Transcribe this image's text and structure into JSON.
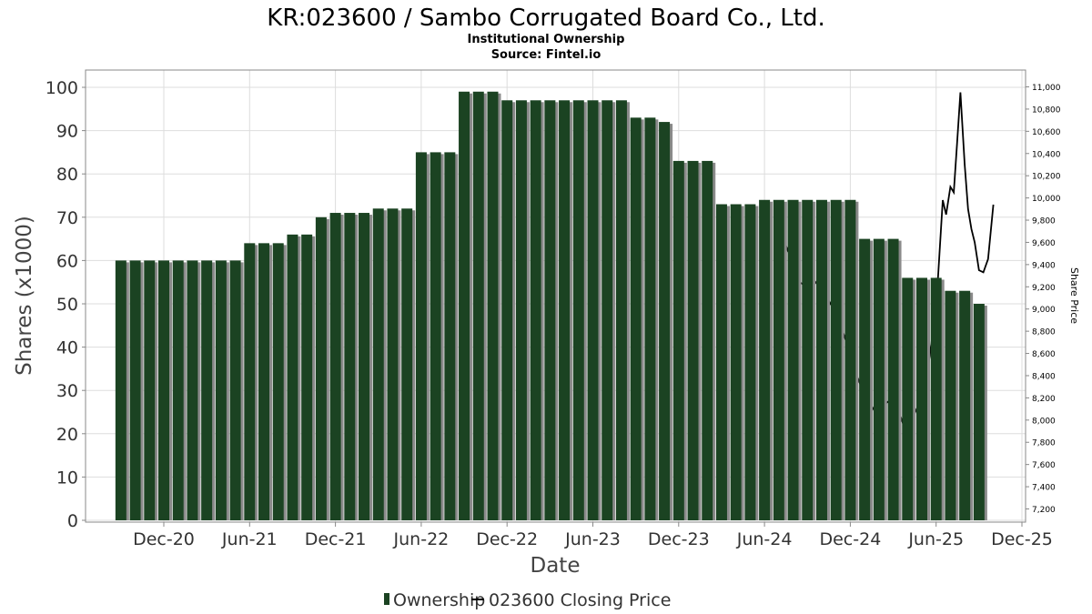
{
  "title": "KR:023600 / Sambo Corrugated Board Co., Ltd.",
  "subtitle": "Institutional Ownership",
  "source": "Source: Fintel.io",
  "colors": {
    "bar": "#1b4322",
    "bar_shadow": "#8a8a8a",
    "line": "#000000",
    "grid": "#dddddd",
    "axis": "#888888"
  },
  "chart_data": {
    "type": "bar",
    "xlabel": "Date",
    "ylabel": "Shares (x1000)",
    "y2label": "Share Price",
    "ylim": [
      0,
      100
    ],
    "y2lim": [
      7100,
      11100
    ],
    "yticks": [
      0,
      10,
      20,
      30,
      40,
      50,
      60,
      70,
      80,
      90,
      100
    ],
    "y2ticks": [
      7200,
      7400,
      7600,
      7800,
      8000,
      8200,
      8400,
      8600,
      8800,
      9000,
      9200,
      9400,
      9600,
      9800,
      10000,
      10200,
      10400,
      10600,
      10800,
      11000
    ],
    "y2tick_labels": [
      "7,200",
      "7,400",
      "7,600",
      "7,800",
      "8,000",
      "8,200",
      "8,400",
      "8,600",
      "8,800",
      "9,000",
      "9,200",
      "9,400",
      "9,600",
      "9,800",
      "10,000",
      "10,200",
      "10,400",
      "10,600",
      "10,800",
      "11,000"
    ],
    "xlim": [
      "2020-06",
      "2025-12"
    ],
    "xticks": [
      {
        "date": "2020-12",
        "label": "Dec-20"
      },
      {
        "date": "2021-06",
        "label": "Jun-21"
      },
      {
        "date": "2021-12",
        "label": "Dec-21"
      },
      {
        "date": "2022-06",
        "label": "Jun-22"
      },
      {
        "date": "2022-12",
        "label": "Dec-22"
      },
      {
        "date": "2023-06",
        "label": "Jun-23"
      },
      {
        "date": "2023-12",
        "label": "Dec-23"
      },
      {
        "date": "2024-06",
        "label": "Jun-24"
      },
      {
        "date": "2024-12",
        "label": "Dec-24"
      },
      {
        "date": "2025-06",
        "label": "Jun-25"
      },
      {
        "date": "2025-12",
        "label": "Dec-25"
      }
    ],
    "grid": true,
    "legend_position": "bottom-center",
    "series": [
      {
        "name": "Ownership",
        "type": "bar",
        "x": [
          "2020-09",
          "2020-10",
          "2020-11",
          "2020-12",
          "2021-01",
          "2021-02",
          "2021-03",
          "2021-04",
          "2021-05",
          "2021-06",
          "2021-07",
          "2021-08",
          "2021-09",
          "2021-10",
          "2021-11",
          "2021-12",
          "2022-01",
          "2022-02",
          "2022-03",
          "2022-04",
          "2022-05",
          "2022-06",
          "2022-07",
          "2022-08",
          "2022-09",
          "2022-10",
          "2022-11",
          "2022-12",
          "2023-01",
          "2023-02",
          "2023-03",
          "2023-04",
          "2023-05",
          "2023-06",
          "2023-07",
          "2023-08",
          "2023-09",
          "2023-10",
          "2023-11",
          "2023-12",
          "2024-01",
          "2024-02",
          "2024-03",
          "2024-04",
          "2024-05",
          "2024-06",
          "2024-07",
          "2024-08",
          "2024-09",
          "2024-10",
          "2024-11",
          "2024-12",
          "2025-01",
          "2025-02",
          "2025-03",
          "2025-04",
          "2025-05",
          "2025-06",
          "2025-07",
          "2025-08",
          "2025-09"
        ],
        "values": [
          60,
          60,
          60,
          60,
          60,
          60,
          60,
          60,
          60,
          64,
          64,
          64,
          66,
          66,
          70,
          71,
          71,
          71,
          72,
          72,
          72,
          85,
          85,
          85,
          99,
          99,
          99,
          97,
          97,
          97,
          97,
          97,
          97,
          97,
          97,
          97,
          93,
          93,
          92,
          83,
          83,
          83,
          73,
          73,
          73,
          74,
          74,
          74,
          74,
          74,
          74,
          74,
          65,
          65,
          65,
          56,
          56,
          56,
          53,
          53,
          50
        ]
      },
      {
        "name": "023600 Closing Price",
        "type": "line",
        "axis": "right",
        "x": [
          "2024-07",
          "2024-07-15",
          "2024-08-01",
          "2024-08-15",
          "2024-09-01",
          "2024-09-15",
          "2024-10-01",
          "2024-10-15",
          "2024-11-01",
          "2024-11-15",
          "2024-12-01",
          "2024-12-15",
          "2025-01-01",
          "2025-01-15",
          "2025-02-01",
          "2025-02-15",
          "2025-03-01",
          "2025-03-15",
          "2025-04-01",
          "2025-04-15",
          "2025-05-01",
          "2025-05-15",
          "2025-06-01",
          "2025-06-08",
          "2025-06-15",
          "2025-06-22",
          "2025-07-01",
          "2025-07-08",
          "2025-07-15",
          "2025-07-22",
          "2025-08-01",
          "2025-08-08",
          "2025-08-15",
          "2025-08-22",
          "2025-09-01",
          "2025-09-10",
          "2025-09-20",
          "2025-10-01"
        ],
        "values": [
          9720,
          9580,
          9400,
          9240,
          9200,
          9260,
          9170,
          9080,
          8960,
          8800,
          8600,
          8400,
          8220,
          8130,
          8020,
          8150,
          8200,
          8050,
          7850,
          8050,
          8200,
          8500,
          9000,
          9500,
          9980,
          9850,
          10100,
          10050,
          10500,
          10950,
          10300,
          9900,
          9720,
          9600,
          9350,
          9330,
          9450,
          9940
        ]
      }
    ]
  },
  "legend": {
    "ownership_label": "Ownership",
    "price_label": "023600 Closing Price"
  }
}
